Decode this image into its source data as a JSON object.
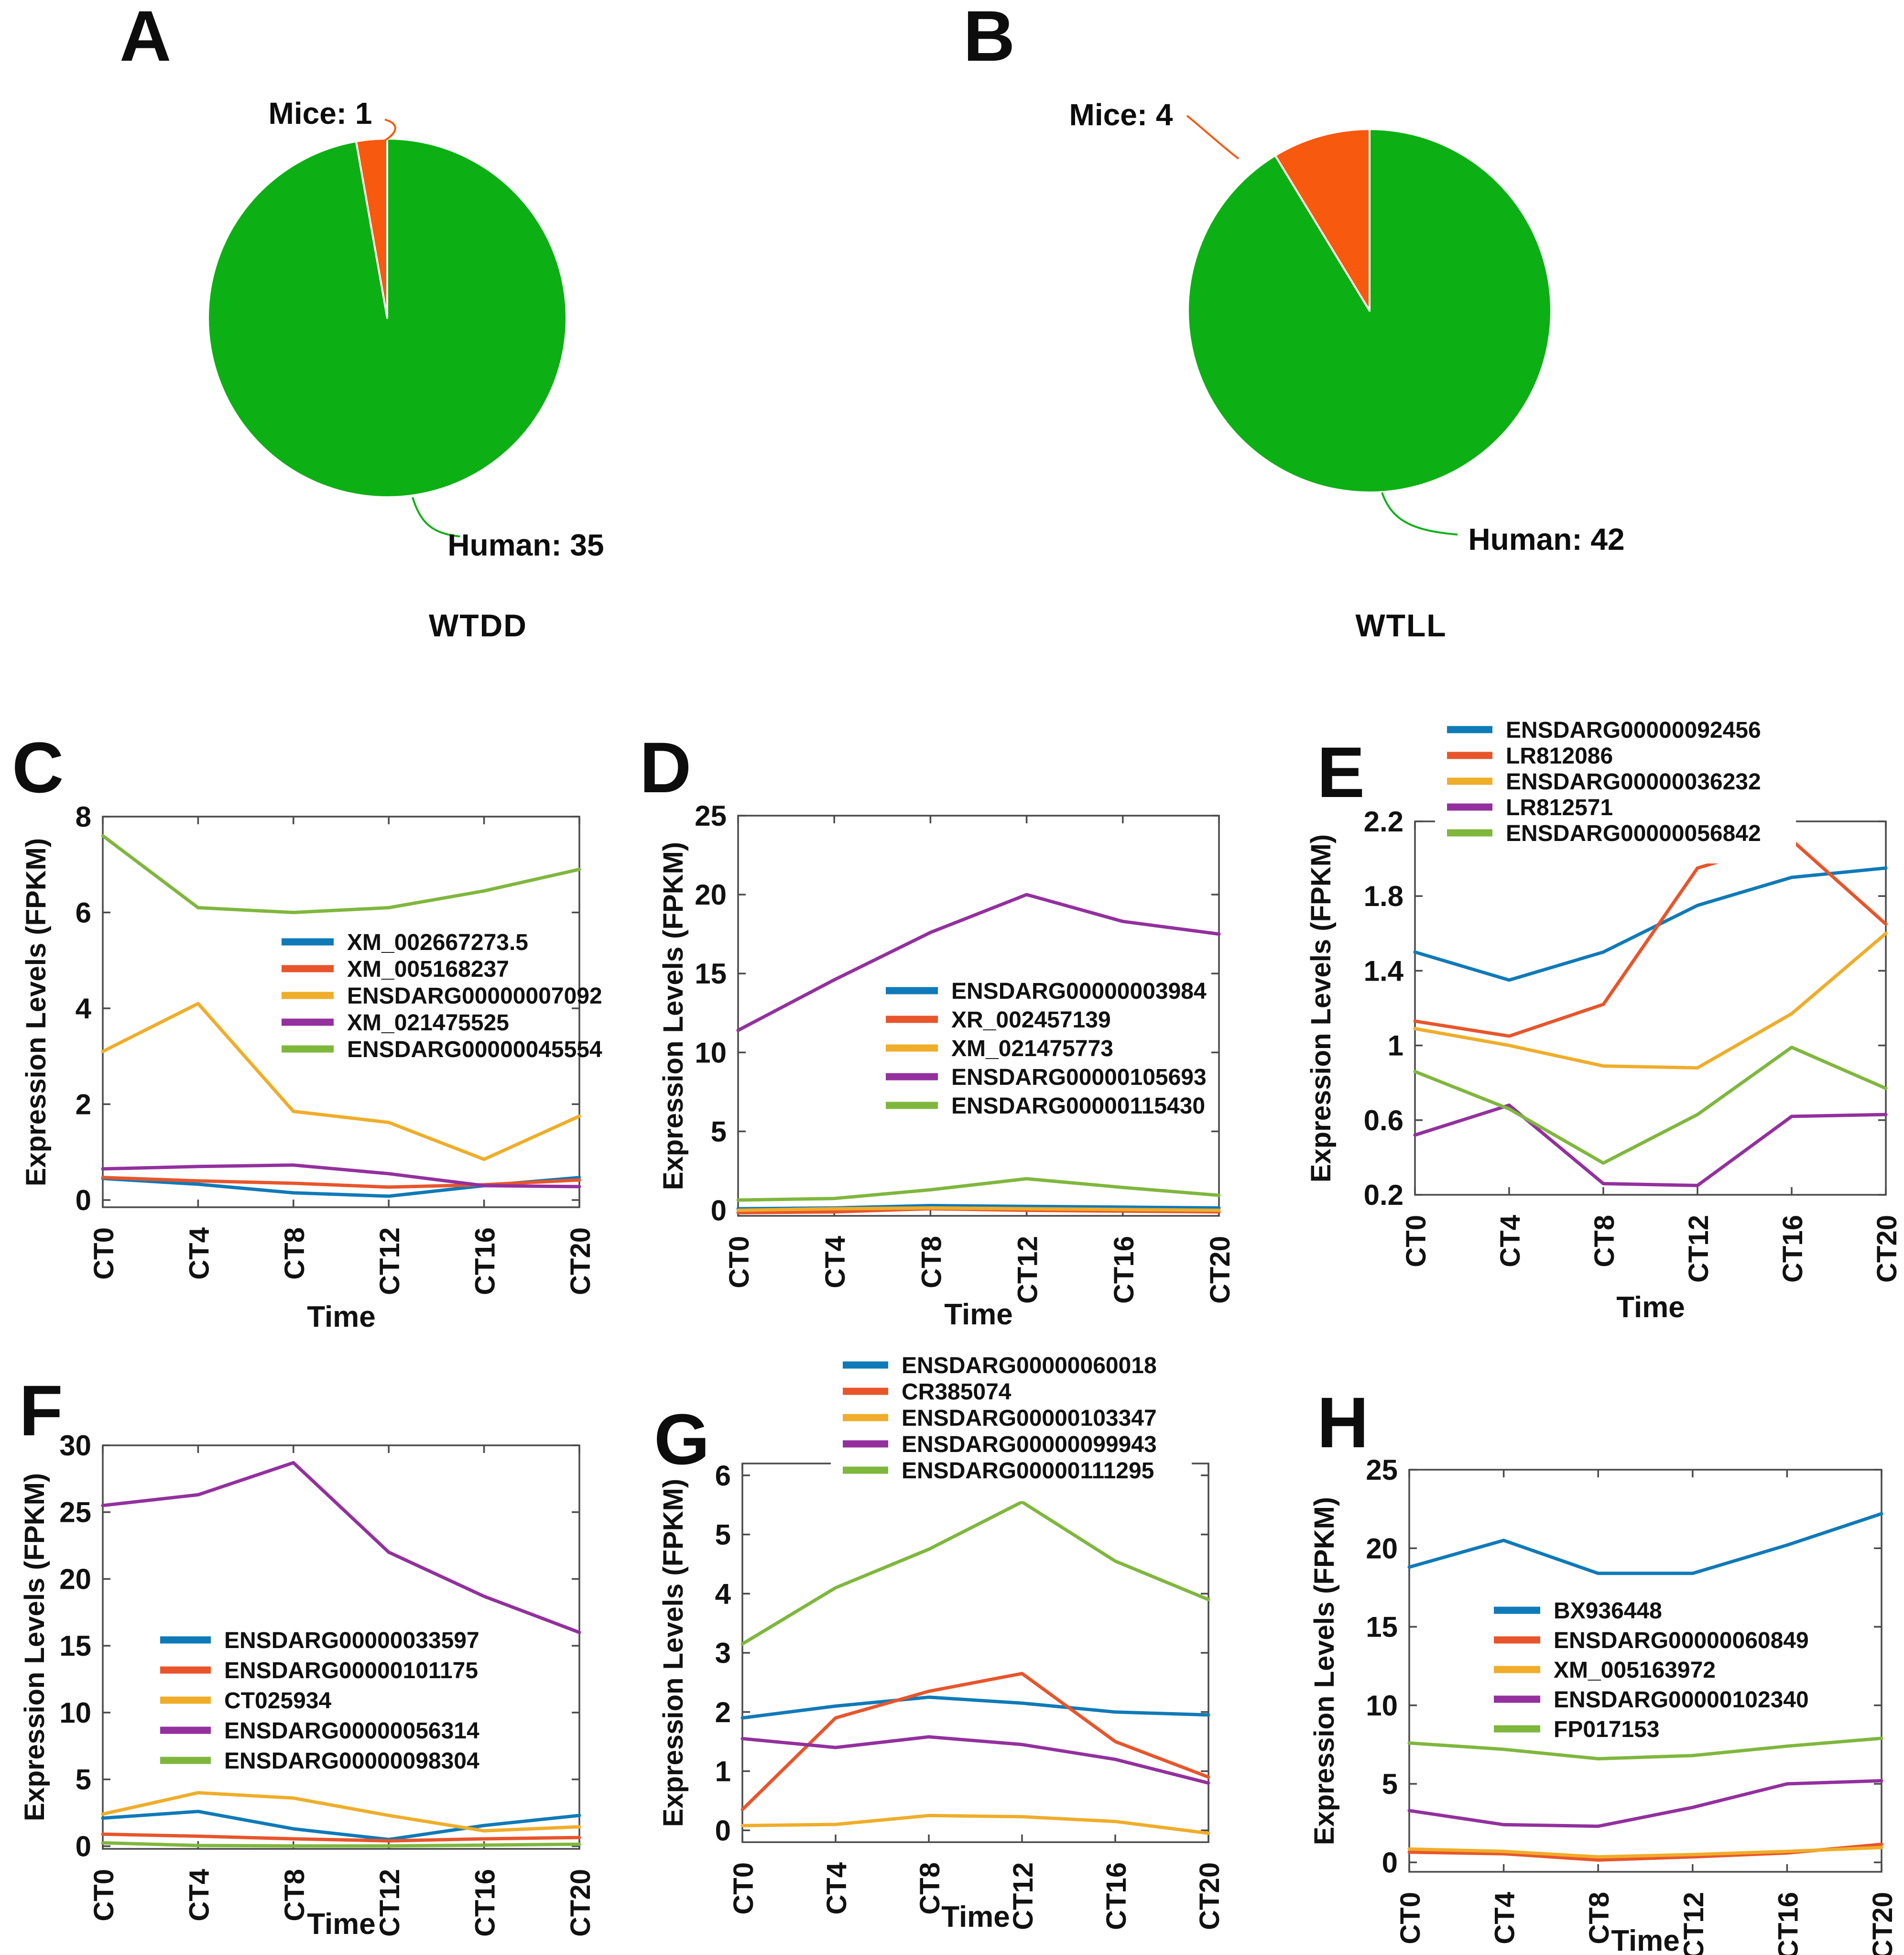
{
  "figure_title": "",
  "chart_data": [
    {
      "id": "A",
      "type": "pie",
      "title": "WTDD",
      "slices": [
        {
          "label": "Mice: 1",
          "value": 1,
          "color": "#f7590f"
        },
        {
          "label": "Human: 35",
          "value": 35,
          "color": "#0cb014"
        }
      ],
      "start_angle_deg": 90,
      "direction": "counterclockwise"
    },
    {
      "id": "B",
      "type": "pie",
      "title": "WTLL",
      "slices": [
        {
          "label": "Mice: 4",
          "value": 4,
          "color": "#f7590f"
        },
        {
          "label": "Human: 42",
          "value": 42,
          "color": "#0cb014"
        }
      ],
      "start_angle_deg": 90,
      "direction": "counterclockwise"
    },
    {
      "id": "C",
      "type": "line",
      "ylabel": "Expression Levels (FPKM)",
      "xlabel": "Time",
      "categories": [
        "CT0",
        "CT4",
        "CT8",
        "CT12",
        "CT16",
        "CT20"
      ],
      "ylim": [
        -0.15,
        8
      ],
      "yticks": [
        0,
        2,
        4,
        6,
        8
      ],
      "grid": false,
      "legend_position": "inside-center-right",
      "series": [
        {
          "name": "XM_002667273.5",
          "color": "#0f7ab8",
          "values": [
            0.45,
            0.33,
            0.15,
            0.08,
            0.3,
            0.47
          ]
        },
        {
          "name": "XM_005168237",
          "color": "#e8552b",
          "values": [
            0.47,
            0.4,
            0.35,
            0.27,
            0.32,
            0.42
          ]
        },
        {
          "name": "ENSDARG00000007092",
          "color": "#efad29",
          "values": [
            3.1,
            4.1,
            1.85,
            1.62,
            0.85,
            1.75
          ]
        },
        {
          "name": "XM_021475525",
          "color": "#93309e",
          "values": [
            0.65,
            0.7,
            0.73,
            0.55,
            0.3,
            0.28
          ]
        },
        {
          "name": "ENSDARG00000045554",
          "color": "#7fb73d",
          "values": [
            7.6,
            6.1,
            6.0,
            6.1,
            6.45,
            6.9
          ]
        }
      ]
    },
    {
      "id": "D",
      "type": "line",
      "ylabel": "Expression Levels (FPKM)",
      "xlabel": "Time",
      "categories": [
        "CT0",
        "CT4",
        "CT8",
        "CT12",
        "CT16",
        "CT20"
      ],
      "ylim": [
        -0.35,
        25
      ],
      "yticks": [
        0,
        5,
        10,
        15,
        20,
        25
      ],
      "grid": false,
      "legend_position": "inside-center",
      "series": [
        {
          "name": "ENSDARG00000003984",
          "color": "#0f7ab8",
          "values": [
            0.1,
            0.15,
            0.3,
            0.25,
            0.2,
            0.15
          ]
        },
        {
          "name": "XR_002457139",
          "color": "#e8552b",
          "values": [
            -0.15,
            -0.1,
            0.1,
            0.0,
            -0.05,
            -0.1
          ]
        },
        {
          "name": "XM_021475773",
          "color": "#efad29",
          "values": [
            0.0,
            0.1,
            0.15,
            0.1,
            0.05,
            0.0
          ]
        },
        {
          "name": "ENSDARG00000105693",
          "color": "#93309e",
          "values": [
            11.4,
            14.6,
            17.6,
            20.0,
            18.3,
            17.5
          ]
        },
        {
          "name": "ENSDARG00000115430",
          "color": "#7fb73d",
          "values": [
            0.65,
            0.75,
            1.3,
            2.0,
            1.45,
            0.95
          ]
        }
      ]
    },
    {
      "id": "E",
      "type": "line",
      "ylabel": "Expression Levels (FPKM)",
      "xlabel": "Time",
      "categories": [
        "CT0",
        "CT4",
        "CT8",
        "CT12",
        "CT16",
        "CT20"
      ],
      "ylim": [
        0.2,
        2.2
      ],
      "yticks": [
        0.2,
        0.6,
        1,
        1.4,
        1.8,
        2.2
      ],
      "grid": false,
      "legend_position": "above-left",
      "series": [
        {
          "name": "ENSDARG00000092456",
          "color": "#0f7ab8",
          "values": [
            1.5,
            1.35,
            1.5,
            1.75,
            1.9,
            1.95
          ]
        },
        {
          "name": "LR812086",
          "color": "#e8552b",
          "values": [
            1.13,
            1.05,
            1.22,
            1.95,
            2.1,
            1.65
          ]
        },
        {
          "name": "ENSDARG00000036232",
          "color": "#efad29",
          "values": [
            1.09,
            1.0,
            0.89,
            0.88,
            1.17,
            1.6
          ]
        },
        {
          "name": "LR812571",
          "color": "#93309e",
          "values": [
            0.52,
            0.68,
            0.26,
            0.25,
            0.62,
            0.63
          ]
        },
        {
          "name": "ENSDARG00000056842",
          "color": "#7fb73d",
          "values": [
            0.86,
            0.66,
            0.37,
            0.63,
            0.99,
            0.77
          ]
        }
      ]
    },
    {
      "id": "F",
      "type": "line",
      "ylabel": "Expression Levels (FPKM)",
      "xlabel": "Time",
      "categories": [
        "CT0",
        "CT4",
        "CT8",
        "CT12",
        "CT16",
        "CT20"
      ],
      "ylim": [
        -0.2,
        30
      ],
      "yticks": [
        0,
        5,
        10,
        15,
        20,
        25,
        30
      ],
      "grid": false,
      "legend_position": "inside-center-left",
      "series": [
        {
          "name": "ENSDARG00000033597",
          "color": "#0f7ab8",
          "values": [
            2.1,
            2.6,
            1.3,
            0.5,
            1.55,
            2.3
          ]
        },
        {
          "name": "ENSDARG00000101175",
          "color": "#e8552b",
          "values": [
            0.9,
            0.75,
            0.55,
            0.4,
            0.55,
            0.65
          ]
        },
        {
          "name": "CT025934",
          "color": "#efad29",
          "values": [
            2.4,
            4.0,
            3.6,
            2.3,
            1.15,
            1.45
          ]
        },
        {
          "name": "ENSDARG00000056314",
          "color": "#93309e",
          "values": [
            25.5,
            26.3,
            28.7,
            22.0,
            18.7,
            16.0
          ]
        },
        {
          "name": "ENSDARG00000098304",
          "color": "#7fb73d",
          "values": [
            0.25,
            0.05,
            0.02,
            0.02,
            0.08,
            0.15
          ]
        }
      ]
    },
    {
      "id": "G",
      "type": "line",
      "ylabel": "Expression Levels (FPKM)",
      "xlabel": "Time",
      "categories": [
        "CT0",
        "CT4",
        "CT8",
        "CT12",
        "CT16",
        "CT20"
      ],
      "ylim": [
        -0.2,
        6.2
      ],
      "yticks": [
        0,
        1,
        2,
        3,
        4,
        5,
        6
      ],
      "grid": false,
      "legend_position": "above-center",
      "series": [
        {
          "name": "ENSDARG00000060018",
          "color": "#0f7ab8",
          "values": [
            1.9,
            2.1,
            2.25,
            2.15,
            2.0,
            1.95
          ]
        },
        {
          "name": "CR385074",
          "color": "#e8552b",
          "values": [
            0.35,
            1.9,
            2.35,
            2.65,
            1.5,
            0.9
          ]
        },
        {
          "name": "ENSDARG00000103347",
          "color": "#efad29",
          "values": [
            0.08,
            0.1,
            0.25,
            0.23,
            0.15,
            -0.05
          ]
        },
        {
          "name": "ENSDARG00000099943",
          "color": "#93309e",
          "values": [
            1.55,
            1.4,
            1.58,
            1.45,
            1.2,
            0.8
          ]
        },
        {
          "name": "ENSDARG00000111295",
          "color": "#7fb73d",
          "values": [
            3.15,
            4.1,
            4.75,
            5.55,
            4.55,
            3.9
          ]
        }
      ]
    },
    {
      "id": "H",
      "type": "line",
      "ylabel": "Expression Levels (FPKM)",
      "xlabel": "Time",
      "categories": [
        "CT0",
        "CT4",
        "CT8",
        "CT12",
        "CT16",
        "CT20"
      ],
      "ylim": [
        -0.6,
        25
      ],
      "yticks": [
        0,
        5,
        10,
        15,
        20,
        25
      ],
      "grid": false,
      "legend_position": "inside-center-left",
      "series": [
        {
          "name": "BX936448",
          "color": "#0f7ab8",
          "values": [
            18.8,
            20.5,
            18.4,
            18.4,
            20.2,
            22.2
          ]
        },
        {
          "name": "ENSDARG00000060849",
          "color": "#e8552b",
          "values": [
            0.65,
            0.55,
            0.15,
            0.35,
            0.6,
            1.15
          ]
        },
        {
          "name": "XM_005163972",
          "color": "#efad29",
          "values": [
            0.85,
            0.7,
            0.35,
            0.5,
            0.7,
            0.95
          ]
        },
        {
          "name": "ENSDARG00000102340",
          "color": "#93309e",
          "values": [
            3.3,
            2.4,
            2.3,
            3.5,
            5.0,
            5.2
          ]
        },
        {
          "name": "FP017153",
          "color": "#7fb73d",
          "values": [
            7.6,
            7.2,
            6.6,
            6.8,
            7.4,
            7.9
          ]
        }
      ]
    }
  ],
  "colors": {
    "pie_green": "#0cb014",
    "pie_orange": "#f7590f",
    "line_blue": "#0f7ab8",
    "line_orange": "#e8552b",
    "line_yellow": "#efad29",
    "line_purple": "#93309e",
    "line_green": "#7fb73d",
    "axis": "#4a4a4a",
    "text": "#111111"
  }
}
